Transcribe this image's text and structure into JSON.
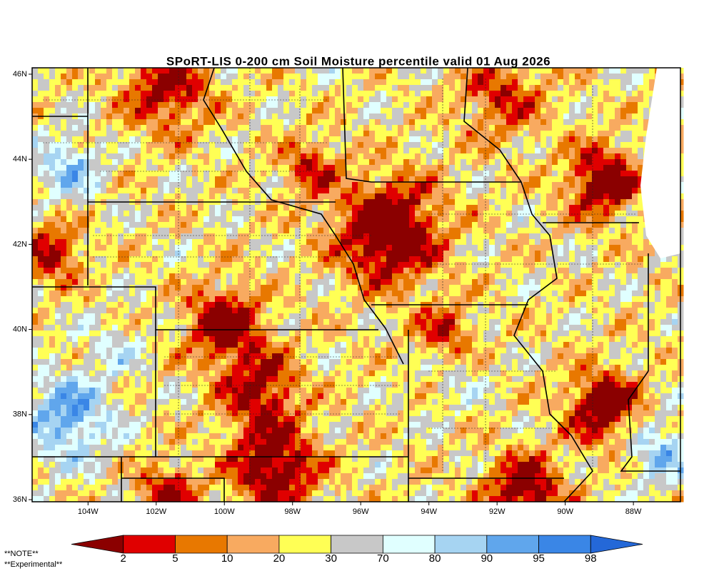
{
  "title": "SPoRT-LIS 0-200 cm Soil Moisture percentile valid 01 Aug 2026",
  "map": {
    "xlim": [
      -105.64,
      -86.62
    ],
    "ylim": [
      35.95,
      46.15
    ],
    "xticks": [
      {
        "value": -104,
        "label": "104W"
      },
      {
        "value": -102,
        "label": "102W"
      },
      {
        "value": -100,
        "label": "100W"
      },
      {
        "value": -98,
        "label": "98W"
      },
      {
        "value": -96,
        "label": "96W"
      },
      {
        "value": -94,
        "label": "94W"
      },
      {
        "value": -92,
        "label": "92W"
      },
      {
        "value": -90,
        "label": "90W"
      },
      {
        "value": -88,
        "label": "88W"
      }
    ],
    "yticks": [
      {
        "value": 46,
        "label": "46N"
      },
      {
        "value": 44,
        "label": "44N"
      },
      {
        "value": 42,
        "label": "42N"
      },
      {
        "value": 40,
        "label": "40N"
      },
      {
        "value": 38,
        "label": "38N"
      },
      {
        "value": 36,
        "label": "36N"
      }
    ]
  },
  "colorbar": {
    "labels": [
      "2",
      "5",
      "10",
      "20",
      "30",
      "70",
      "80",
      "90",
      "95",
      "98"
    ],
    "colors": [
      "#8b0000",
      "#e00000",
      "#e87800",
      "#f8aa60",
      "#ffff55",
      "#c8c8c8",
      "#e0ffff",
      "#a6d4f2",
      "#60a6ec",
      "#3a86e6",
      "#2468d8"
    ]
  },
  "notes": [
    "**NOTE**",
    "**Experimental**"
  ]
}
